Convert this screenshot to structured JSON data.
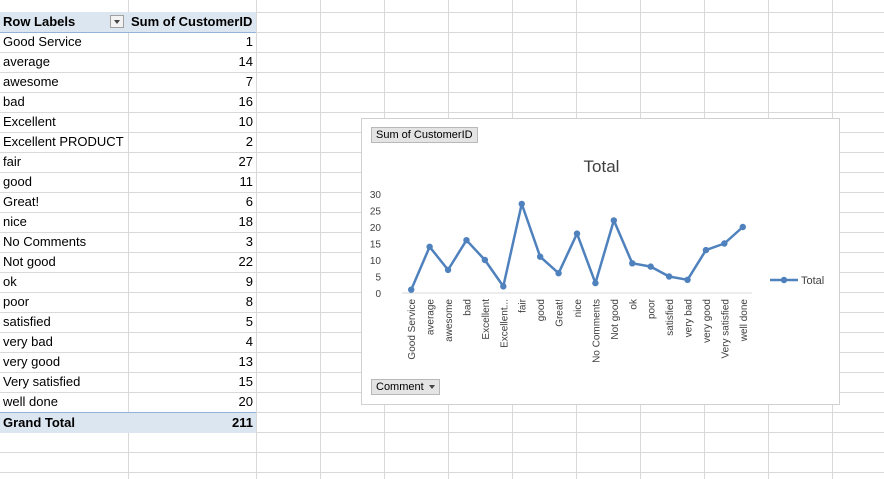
{
  "pivot": {
    "header": {
      "row_labels": "Row Labels",
      "value_field": "Sum of CustomerID"
    },
    "rows": [
      {
        "label": " Good Service",
        "value": "1"
      },
      {
        "label": "average",
        "value": "14"
      },
      {
        "label": "awesome",
        "value": "7"
      },
      {
        "label": "bad",
        "value": "16"
      },
      {
        "label": "Excellent",
        "value": "10"
      },
      {
        "label": "Excellent PRODUCT",
        "value": "2"
      },
      {
        "label": "fair",
        "value": "27"
      },
      {
        "label": "good",
        "value": "11"
      },
      {
        "label": "Great!",
        "value": "6"
      },
      {
        "label": "nice",
        "value": "18"
      },
      {
        "label": "No Comments",
        "value": "3"
      },
      {
        "label": "Not good",
        "value": "22"
      },
      {
        "label": "ok",
        "value": "9"
      },
      {
        "label": "poor",
        "value": "8"
      },
      {
        "label": "satisfied",
        "value": "5"
      },
      {
        "label": "very bad",
        "value": "4"
      },
      {
        "label": "very good",
        "value": "13"
      },
      {
        "label": "Very satisfied",
        "value": "15"
      },
      {
        "label": "well done",
        "value": "20"
      }
    ],
    "grand_total": {
      "label": "Grand Total",
      "value": "211"
    }
  },
  "chart": {
    "value_field_button": "Sum of CustomerID",
    "axis_field_button": "Comment"
  },
  "chart_data": {
    "type": "line",
    "title": "Total",
    "categories": [
      "Good Service",
      "average",
      "awesome",
      "bad",
      "Excellent",
      "Excellent...",
      "fair",
      "good",
      "Great!",
      "nice",
      "No Comments",
      "Not good",
      "ok",
      "poor",
      "satisfied",
      "very bad",
      "very good",
      "Very satisfied",
      "well done"
    ],
    "series": [
      {
        "name": "Total",
        "values": [
          1,
          14,
          7,
          16,
          10,
          2,
          27,
          11,
          6,
          18,
          3,
          22,
          9,
          8,
          5,
          4,
          13,
          15,
          20
        ]
      }
    ],
    "yticks": [
      "0",
      "5",
      "10",
      "15",
      "20",
      "25",
      "30"
    ],
    "ylim": [
      0,
      30
    ],
    "xlabel": "",
    "ylabel": "",
    "legend": "right",
    "grid": false,
    "line_color": "#4f81bd"
  }
}
